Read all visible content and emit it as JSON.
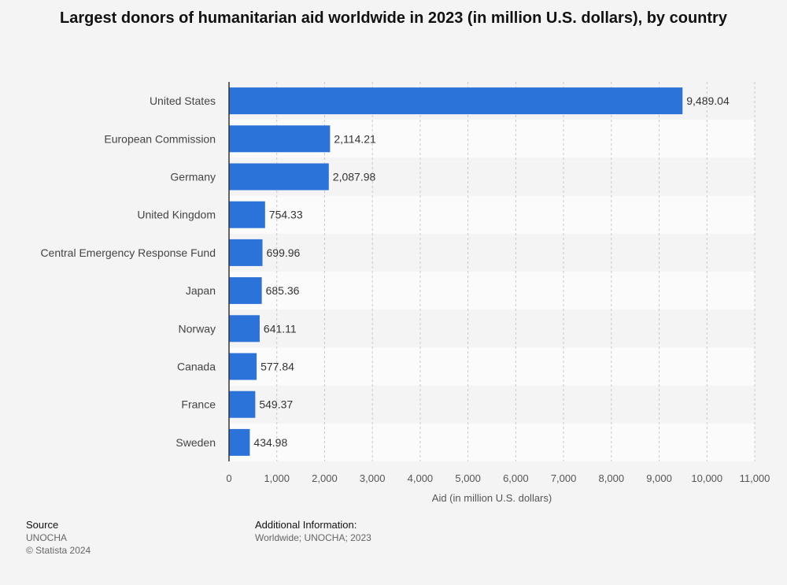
{
  "chart_data": {
    "type": "bar",
    "orientation": "horizontal",
    "title": "Largest donors of humanitarian aid worldwide in 2023 (in million U.S. dollars), by country",
    "categories": [
      "United States",
      "European Commission",
      "Germany",
      "United Kingdom",
      "Central Emergency Response Fund",
      "Japan",
      "Norway",
      "Canada",
      "France",
      "Sweden"
    ],
    "values": [
      9489.04,
      2114.21,
      2087.98,
      754.33,
      699.96,
      685.36,
      641.11,
      577.84,
      549.37,
      434.98
    ],
    "value_labels": [
      "9,489.04",
      "2,114.21",
      "2,087.98",
      "754.33",
      "699.96",
      "685.36",
      "641.11",
      "577.84",
      "549.37",
      "434.98"
    ],
    "xlabel": "Aid (in million U.S. dollars)",
    "ylabel": "",
    "xlim": [
      0,
      11000
    ],
    "xticks": [
      0,
      1000,
      2000,
      3000,
      4000,
      5000,
      6000,
      7000,
      8000,
      9000,
      10000,
      11000
    ],
    "xtick_labels": [
      "0",
      "1,000",
      "2,000",
      "3,000",
      "4,000",
      "5,000",
      "6,000",
      "7,000",
      "8,000",
      "9,000",
      "10,000",
      "11,000"
    ],
    "grid": true,
    "bar_color": "#2b72d9"
  },
  "footer": {
    "source_heading": "Source",
    "source_name": "UNOCHA",
    "copyright": "© Statista 2024",
    "additional_heading": "Additional Information:",
    "additional_text": "Worldwide; UNOCHA; 2023"
  }
}
